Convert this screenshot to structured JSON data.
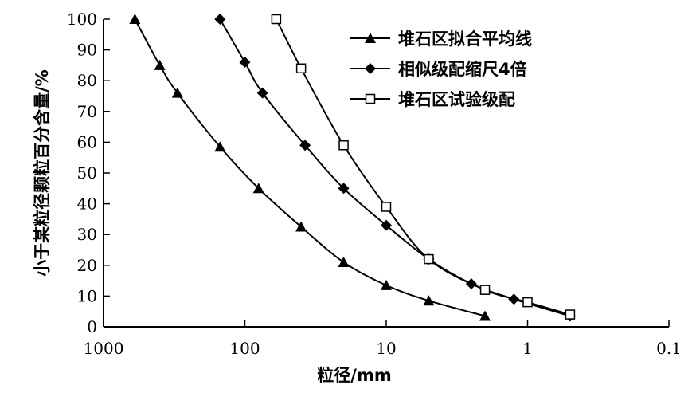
{
  "chart_data": {
    "type": "line",
    "title": "",
    "xlabel": "粒径/mm",
    "ylabel": "小于某粒径颗粒百分含量/%",
    "x_scale": "log",
    "x_reversed": true,
    "xlim": [
      1000,
      0.1
    ],
    "ylim": [
      0,
      100
    ],
    "x_ticks": [
      "1000",
      "100",
      "10",
      "1",
      "0.1"
    ],
    "x_tick_values": [
      1000,
      100,
      10,
      1,
      0.1
    ],
    "y_ticks": [
      "0",
      "10",
      "20",
      "30",
      "40",
      "50",
      "60",
      "70",
      "80",
      "90",
      "100"
    ],
    "y_tick_values": [
      0,
      10,
      20,
      30,
      40,
      50,
      60,
      70,
      80,
      90,
      100
    ],
    "grid": false,
    "legend_position": "top-right",
    "series": [
      {
        "name": "堆石区拟合平均线",
        "marker": "triangle",
        "x": [
          600,
          400,
          300,
          150,
          80,
          40,
          20,
          10,
          5,
          2
        ],
        "y": [
          100,
          85,
          76,
          58.5,
          45,
          32.5,
          21,
          13.5,
          8.5,
          3.5
        ]
      },
      {
        "name": "相似级配缩尺4倍",
        "marker": "diamond",
        "x": [
          150,
          100,
          75,
          37.5,
          20,
          10,
          5,
          2.5,
          1.25,
          0.5
        ],
        "y": [
          100,
          86,
          76,
          59,
          45,
          33,
          22,
          14,
          9,
          3.5
        ]
      },
      {
        "name": "堆石区试验级配",
        "marker": "open-square",
        "x": [
          60,
          40,
          20,
          10,
          5,
          2,
          1,
          0.5
        ],
        "y": [
          100,
          84,
          59,
          39,
          22,
          12,
          8,
          4
        ]
      }
    ]
  }
}
